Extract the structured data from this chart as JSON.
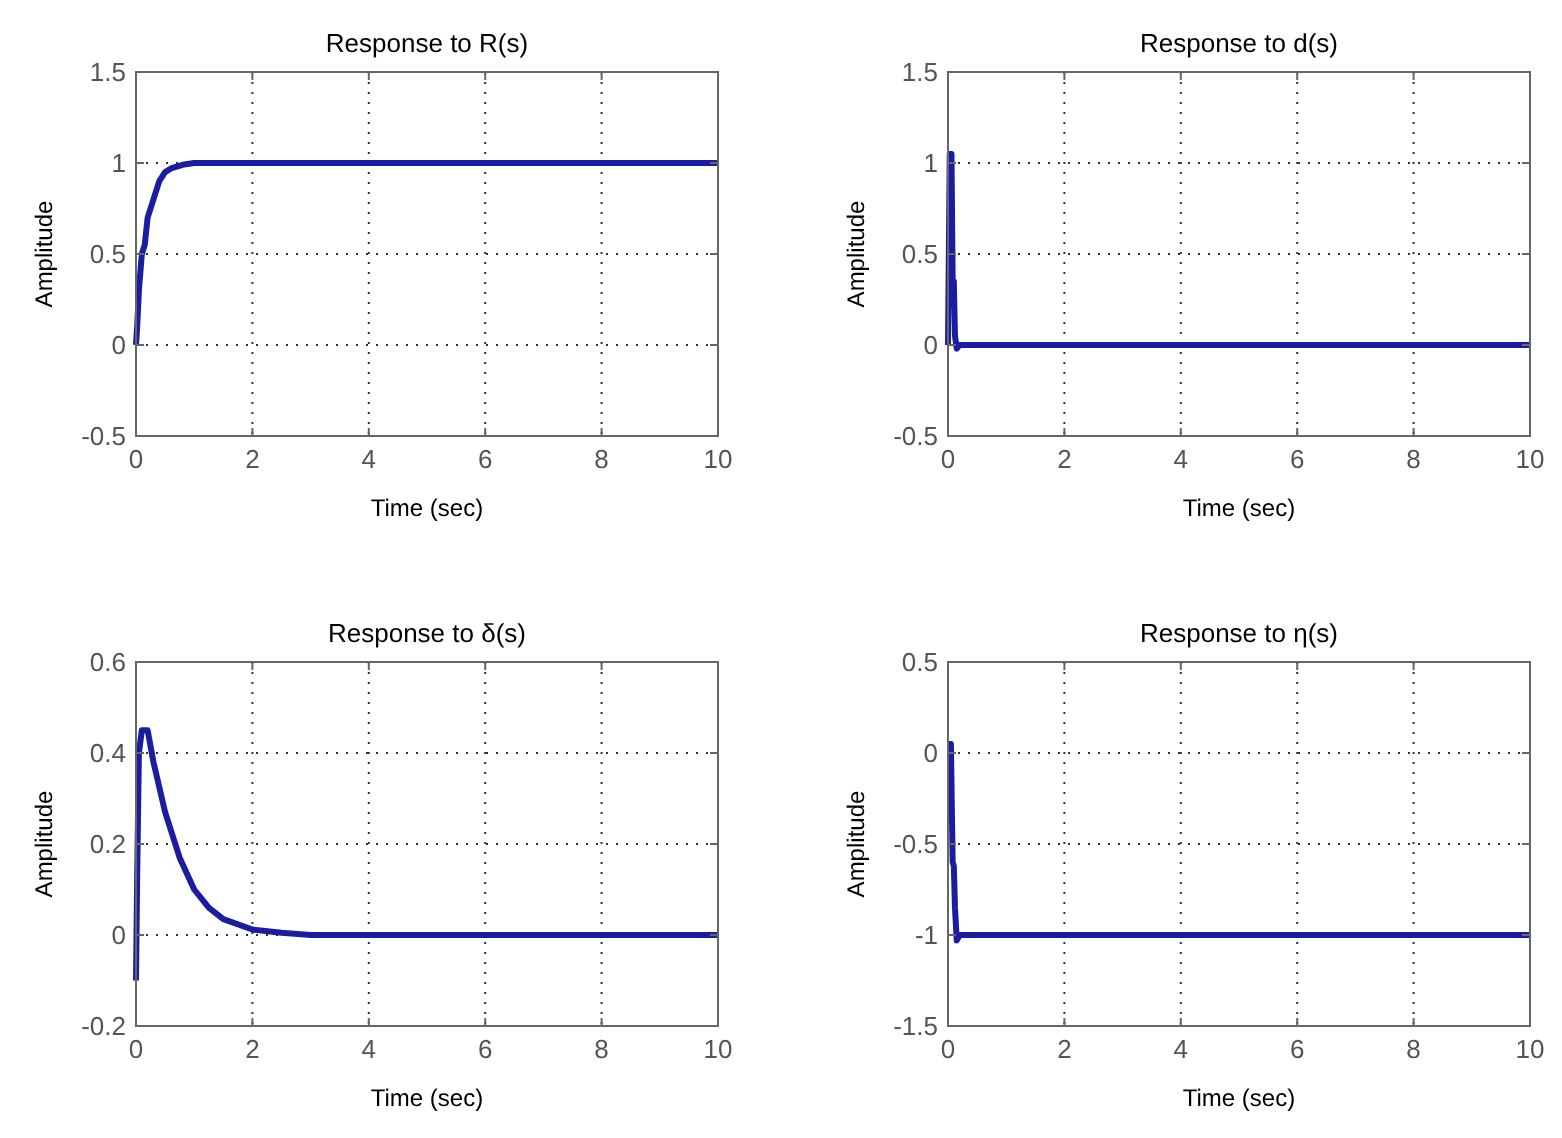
{
  "chart_data": [
    {
      "type": "line",
      "title": "Response to R(s)",
      "xlabel": "Time (sec)",
      "ylabel": "Amplitude",
      "xlim": [
        0,
        10
      ],
      "ylim": [
        -0.5,
        1.5
      ],
      "xticks": [
        0,
        2,
        4,
        6,
        8,
        10
      ],
      "yticks": [
        -0.5,
        0,
        0.5,
        1,
        1.5
      ],
      "grid": true,
      "line_style": "solid",
      "series": [
        {
          "color": "#1c1ca0",
          "x": [
            0,
            0.02,
            0.05,
            0.1,
            0.15,
            0.2,
            0.3,
            0.4,
            0.5,
            0.6,
            0.8,
            1,
            1.2,
            2,
            4,
            6,
            8,
            10
          ],
          "values": [
            0,
            0.1,
            0.3,
            0.5,
            0.55,
            0.7,
            0.8,
            0.9,
            0.95,
            0.97,
            0.99,
            1,
            1,
            1,
            1,
            1,
            1,
            1
          ]
        }
      ]
    },
    {
      "type": "line",
      "title": "Response to d(s)",
      "xlabel": "Time (sec)",
      "ylabel": "Amplitude",
      "xlim": [
        0,
        10
      ],
      "ylim": [
        -0.5,
        1.5
      ],
      "xticks": [
        0,
        2,
        4,
        6,
        8,
        10
      ],
      "yticks": [
        -0.5,
        0,
        0.5,
        1,
        1.5
      ],
      "grid": true,
      "line_style": "solid",
      "series": [
        {
          "color": "#1c1ca0",
          "x": [
            0,
            0.03,
            0.06,
            0.08,
            0.1,
            0.12,
            0.15,
            0.2,
            1,
            10
          ],
          "values": [
            0,
            1.05,
            1.05,
            0.35,
            0.35,
            0.05,
            -0.02,
            0,
            0,
            0
          ]
        }
      ]
    },
    {
      "type": "line",
      "title": "Response to δ(s)",
      "xlabel": "Time (sec)",
      "ylabel": "Amplitude",
      "xlim": [
        0,
        10
      ],
      "ylim": [
        -0.2,
        0.6
      ],
      "xticks": [
        0,
        2,
        4,
        6,
        8,
        10
      ],
      "yticks": [
        -0.2,
        0,
        0.2,
        0.4,
        0.6
      ],
      "grid": true,
      "line_style": "solid",
      "series": [
        {
          "color": "#1c1ca0",
          "x": [
            0,
            0.02,
            0.05,
            0.1,
            0.2,
            0.3,
            0.5,
            0.75,
            1,
            1.25,
            1.5,
            2,
            2.5,
            3,
            10
          ],
          "values": [
            -0.1,
            0.13,
            0.4,
            0.45,
            0.45,
            0.38,
            0.27,
            0.17,
            0.1,
            0.06,
            0.035,
            0.012,
            0.005,
            0,
            0
          ]
        }
      ]
    },
    {
      "type": "line",
      "title": "Response to η(s)",
      "xlabel": "Time (sec)",
      "ylabel": "Amplitude",
      "xlim": [
        0,
        10
      ],
      "ylim": [
        -1.5,
        0.5
      ],
      "xticks": [
        0,
        2,
        4,
        6,
        8,
        10
      ],
      "yticks": [
        -1.5,
        -1,
        -0.5,
        0,
        0.5
      ],
      "grid": true,
      "line_style": "solid",
      "series": [
        {
          "color": "#1c1ca0",
          "x": [
            0,
            0.05,
            0.08,
            0.1,
            0.12,
            0.15,
            0.2,
            0.3,
            1,
            10
          ],
          "values": [
            0.05,
            0.05,
            -0.6,
            -0.62,
            -0.85,
            -1.03,
            -1,
            -1,
            -1,
            -1
          ]
        }
      ]
    }
  ]
}
